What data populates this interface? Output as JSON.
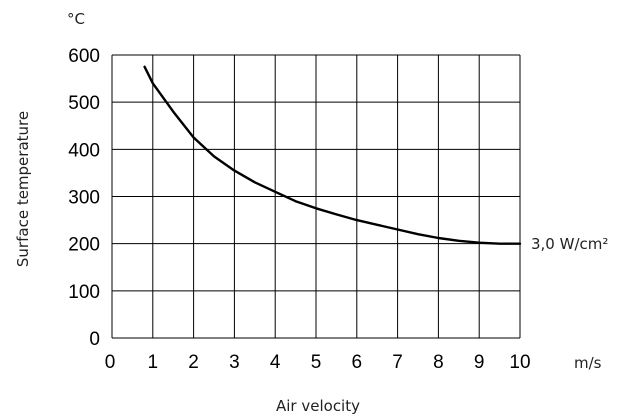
{
  "chart_data": {
    "type": "line",
    "x_unit": "m/s",
    "y_unit": "°C",
    "xlabel": "Air velocity",
    "ylabel": "Surface temperature",
    "xlim": [
      0,
      10
    ],
    "ylim": [
      0,
      600
    ],
    "x_ticks": [
      "0",
      "1",
      "2",
      "3",
      "4",
      "5",
      "6",
      "7",
      "8",
      "9",
      "10"
    ],
    "y_ticks": [
      "0",
      "100",
      "200",
      "300",
      "400",
      "500",
      "600"
    ],
    "grid": true,
    "series": [
      {
        "name": "3,0 W/cm²",
        "x": [
          0.8,
          1.0,
          1.5,
          2.0,
          2.5,
          3.0,
          3.5,
          4.0,
          4.5,
          5.0,
          5.5,
          6.0,
          6.5,
          7.0,
          7.5,
          8.0,
          8.5,
          9.0,
          9.5,
          10.0
        ],
        "y": [
          575,
          540,
          480,
          425,
          385,
          355,
          330,
          310,
          290,
          275,
          262,
          250,
          240,
          230,
          220,
          212,
          206,
          202,
          200,
          200
        ]
      }
    ]
  }
}
